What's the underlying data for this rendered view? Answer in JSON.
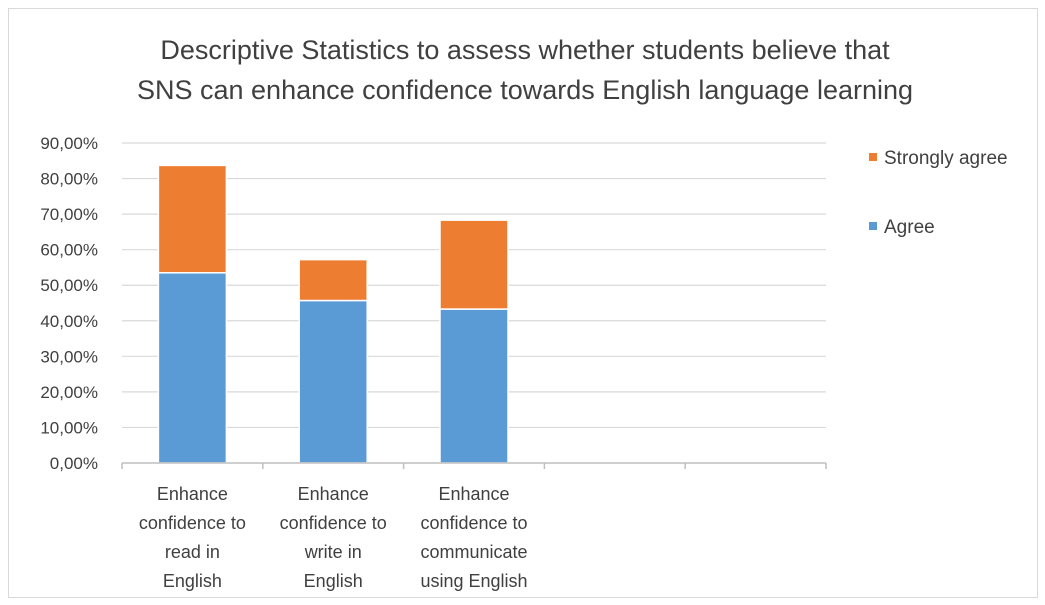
{
  "chart_data": {
    "type": "bar",
    "stacked": true,
    "title_lines": [
      "Descriptive Statistics to assess whether students believe that",
      "SNS can enhance confidence towards English language learning"
    ],
    "categories": [
      [
        "Enhance",
        "confidence to",
        "read in",
        "English"
      ],
      [
        "Enhance",
        "confidence to",
        "write in",
        "English"
      ],
      [
        "Enhance",
        "confidence to",
        "communicate",
        "using English"
      ],
      [],
      []
    ],
    "series": [
      {
        "name": "Agree",
        "color": "#5b9bd5",
        "values": [
          53.5,
          45.7,
          43.3,
          null,
          null
        ]
      },
      {
        "name": "Strongly agree",
        "color": "#ed7d31",
        "values": [
          30.2,
          11.5,
          25.0,
          null,
          null
        ]
      }
    ],
    "y_ticks": [
      "0,00%",
      "10,00%",
      "20,00%",
      "30,00%",
      "40,00%",
      "50,00%",
      "60,00%",
      "70,00%",
      "80,00%",
      "90,00%"
    ],
    "ylim": [
      0,
      90
    ],
    "grid": true,
    "legend_position": "right",
    "legend_order": [
      "Strongly agree",
      "Agree"
    ]
  }
}
